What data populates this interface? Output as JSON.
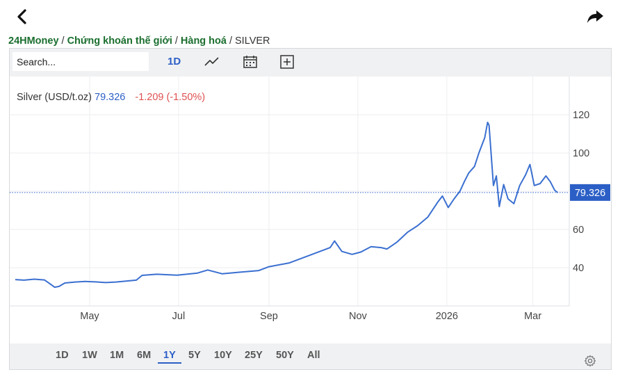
{
  "breadcrumb": {
    "items": [
      "24HMoney",
      "Chứng khoán thế giới",
      "Hàng hoá"
    ],
    "current": "SILVER"
  },
  "toolbar": {
    "search_placeholder": "Search...",
    "interval": "1D"
  },
  "icons": {
    "back": "chevron-left-icon",
    "share": "share-arrow-icon",
    "chart_type": "line-chart-icon",
    "calendar": "calendar-icon",
    "add": "plus-square-icon",
    "settings": "gear-icon"
  },
  "ranges": [
    "1D",
    "1W",
    "1M",
    "6M",
    "1Y",
    "5Y",
    "10Y",
    "25Y",
    "50Y",
    "All"
  ],
  "active_range": "1Y",
  "colors": {
    "line": "#3a6fd0",
    "last_price_label": "#2b5fc6",
    "change_negative": "#e05050",
    "breadcrumb_link": "#1a6e2e"
  },
  "chart_data": {
    "type": "line",
    "legend": {
      "symbol": "Silver (USD/t.oz)",
      "last": "79.326",
      "change": "-1.209 (-1.50%)"
    },
    "last_price": 79.326,
    "last_price_label": "79.326",
    "y_ticks": [
      40,
      60,
      80,
      100,
      120
    ],
    "y_tick_labels": [
      "40",
      "",
      "",
      "100",
      "120"
    ],
    "y_tick_labels_visible": [
      "40",
      "60",
      "100",
      "120"
    ],
    "ylim": [
      20,
      140
    ],
    "x_ticks": [
      {
        "date": "2025-05-01",
        "label": "May"
      },
      {
        "date": "2025-07-01",
        "label": "Jul"
      },
      {
        "date": "2025-09-01",
        "label": "Sep"
      },
      {
        "date": "2025-11-01",
        "label": "Nov"
      },
      {
        "date": "2026-01-01",
        "label": "2026"
      },
      {
        "date": "2026-03-01",
        "label": "Mar"
      }
    ],
    "xlim": [
      "2025-03-11",
      "2026-03-26"
    ],
    "grid": true,
    "series": [
      {
        "values": [
          [
            "2025-03-11",
            33.8
          ],
          [
            "2025-03-17",
            33.5
          ],
          [
            "2025-03-24",
            34.0
          ],
          [
            "2025-03-31",
            33.6
          ],
          [
            "2025-04-04",
            31.5
          ],
          [
            "2025-04-07",
            29.8
          ],
          [
            "2025-04-10",
            30.2
          ],
          [
            "2025-04-14",
            32.0
          ],
          [
            "2025-04-21",
            32.5
          ],
          [
            "2025-04-28",
            32.8
          ],
          [
            "2025-05-05",
            32.6
          ],
          [
            "2025-05-12",
            32.2
          ],
          [
            "2025-05-19",
            32.5
          ],
          [
            "2025-05-26",
            33.0
          ],
          [
            "2025-06-02",
            33.5
          ],
          [
            "2025-06-06",
            36.0
          ],
          [
            "2025-06-16",
            36.6
          ],
          [
            "2025-06-30",
            36.1
          ],
          [
            "2025-07-14",
            37.2
          ],
          [
            "2025-07-21",
            38.8
          ],
          [
            "2025-07-31",
            36.8
          ],
          [
            "2025-08-11",
            37.6
          ],
          [
            "2025-08-25",
            38.5
          ],
          [
            "2025-09-01",
            40.5
          ],
          [
            "2025-09-15",
            42.5
          ],
          [
            "2025-09-29",
            46.5
          ],
          [
            "2025-10-13",
            50.5
          ],
          [
            "2025-10-16",
            54.0
          ],
          [
            "2025-10-21",
            48.5
          ],
          [
            "2025-10-28",
            47.0
          ],
          [
            "2025-11-03",
            48.2
          ],
          [
            "2025-11-10",
            51.0
          ],
          [
            "2025-11-17",
            50.5
          ],
          [
            "2025-11-21",
            49.8
          ],
          [
            "2025-11-28",
            53.5
          ],
          [
            "2025-12-05",
            58.5
          ],
          [
            "2025-12-12",
            62.0
          ],
          [
            "2025-12-19",
            66.5
          ],
          [
            "2025-12-26",
            74.5
          ],
          [
            "2025-12-29",
            77.5
          ],
          [
            "2026-01-02",
            71.5
          ],
          [
            "2026-01-06",
            76.0
          ],
          [
            "2026-01-10",
            80.0
          ],
          [
            "2026-01-13",
            85.0
          ],
          [
            "2026-01-16",
            89.5
          ],
          [
            "2026-01-20",
            93.0
          ],
          [
            "2026-01-23",
            100.0
          ],
          [
            "2026-01-27",
            108.0
          ],
          [
            "2026-01-29",
            116.0
          ],
          [
            "2026-01-30",
            114.5
          ],
          [
            "2026-02-02",
            83.0
          ],
          [
            "2026-02-04",
            88.0
          ],
          [
            "2026-02-06",
            72.0
          ],
          [
            "2026-02-09",
            83.5
          ],
          [
            "2026-02-12",
            76.0
          ],
          [
            "2026-02-16",
            73.5
          ],
          [
            "2026-02-20",
            83.0
          ],
          [
            "2026-02-24",
            88.5
          ],
          [
            "2026-02-27",
            94.0
          ],
          [
            "2026-03-02",
            83.0
          ],
          [
            "2026-03-06",
            84.0
          ],
          [
            "2026-03-10",
            88.0
          ],
          [
            "2026-03-13",
            85.0
          ],
          [
            "2026-03-16",
            80.5
          ],
          [
            "2026-03-18",
            79.326
          ]
        ]
      }
    ]
  }
}
